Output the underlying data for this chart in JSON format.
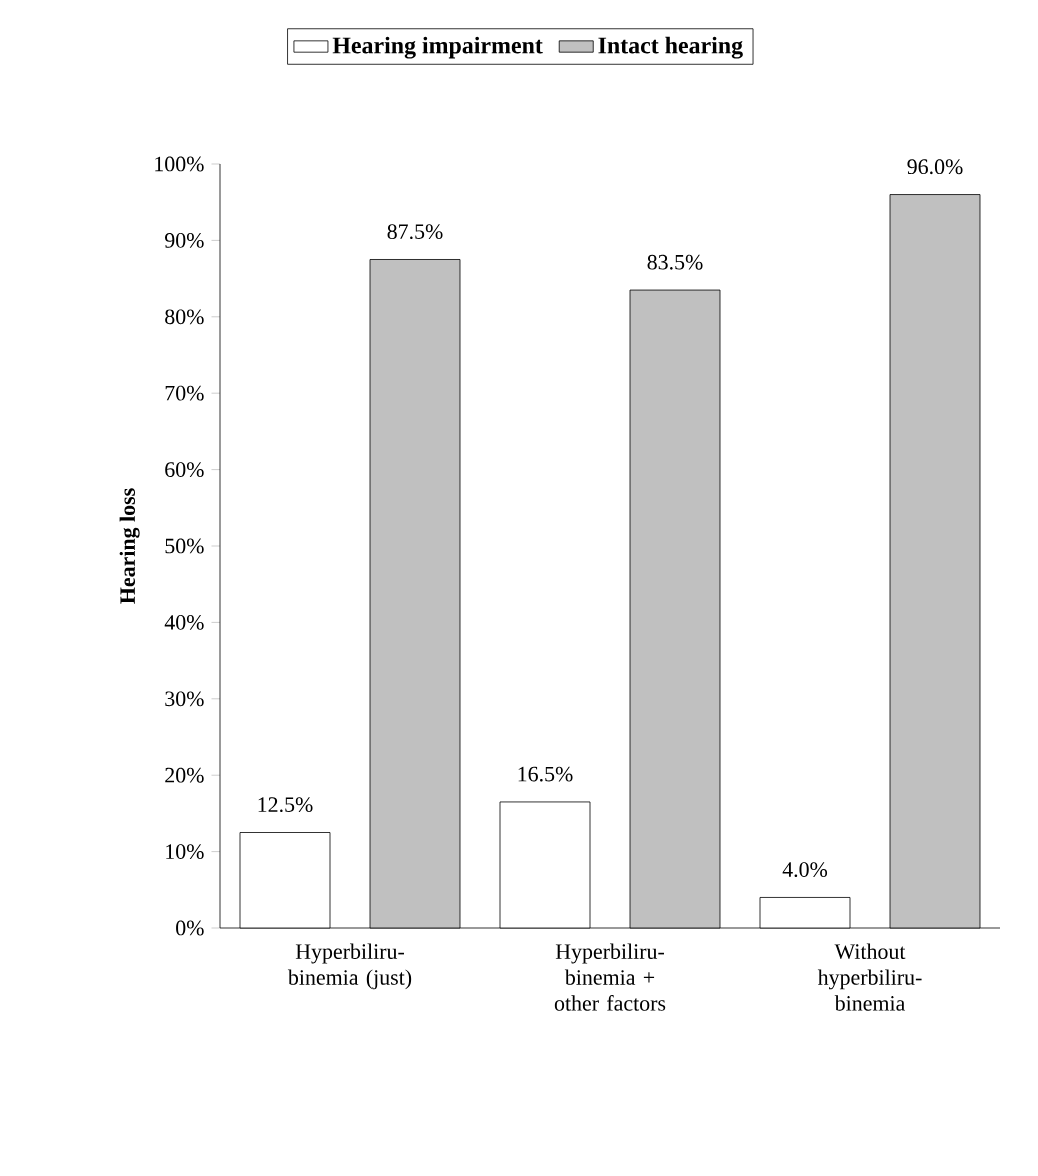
{
  "chart_data": {
    "type": "bar",
    "ylabel": "Hearing loss",
    "categories": [
      "Hyperbiliru-binemia (just)",
      "Hyperbiliru-binemia + other factors",
      "Without hyperbiliru-binemia"
    ],
    "series": [
      {
        "name": "Hearing impairment",
        "color": "#ffffff",
        "values": [
          12.5,
          16.5,
          4.0
        ],
        "value_labels": [
          "12.5%",
          "16.5%",
          "4.0%"
        ]
      },
      {
        "name": "Intact hearing",
        "color": "#c0c0c0",
        "values": [
          87.5,
          83.5,
          96.0
        ],
        "value_labels": [
          "87.5%",
          "83.5%",
          "96.0%"
        ]
      }
    ],
    "ylim": [
      0,
      100
    ],
    "yticks": [
      {
        "value": 0,
        "label": "0%"
      },
      {
        "value": 10,
        "label": "10%"
      },
      {
        "value": 20,
        "label": "20%"
      },
      {
        "value": 30,
        "label": "30%"
      },
      {
        "value": 40,
        "label": "40%"
      },
      {
        "value": 50,
        "label": "50%"
      },
      {
        "value": 60,
        "label": "60%"
      },
      {
        "value": 70,
        "label": "70%"
      },
      {
        "value": 80,
        "label": "80%"
      },
      {
        "value": 90,
        "label": "90%"
      },
      {
        "value": 100,
        "label": "100%"
      }
    ],
    "grid": false,
    "legend": "top"
  }
}
